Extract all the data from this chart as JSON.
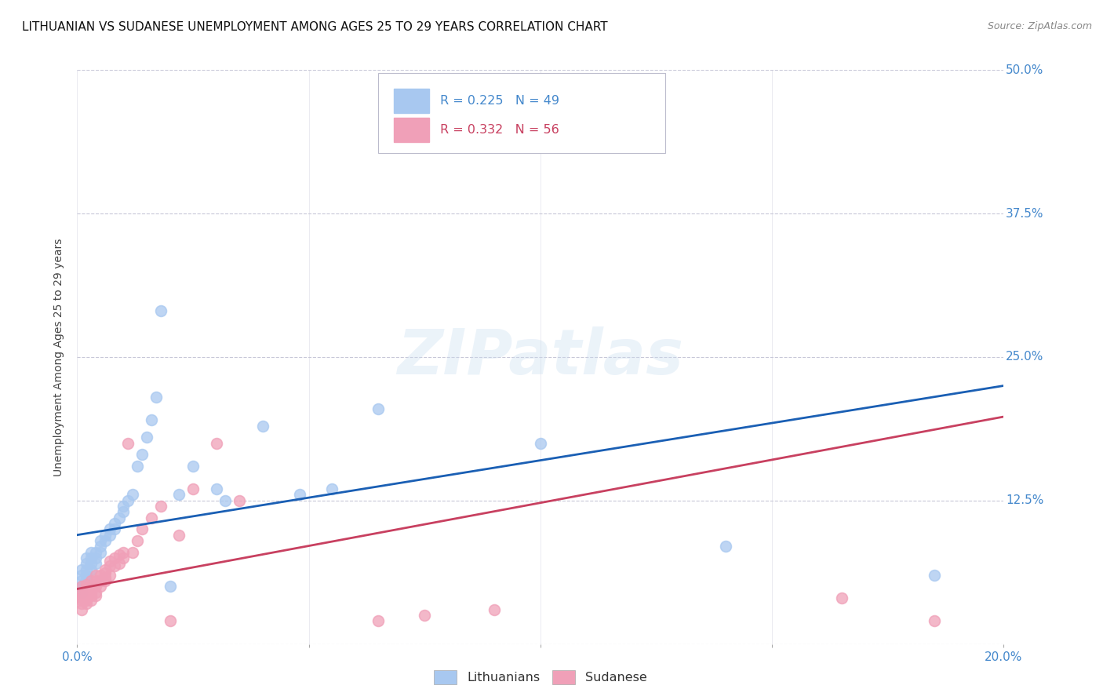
{
  "title": "LITHUANIAN VS SUDANESE UNEMPLOYMENT AMONG AGES 25 TO 29 YEARS CORRELATION CHART",
  "source": "Source: ZipAtlas.com",
  "ylabel": "Unemployment Among Ages 25 to 29 years",
  "xlim": [
    0.0,
    0.2
  ],
  "ylim": [
    0.0,
    0.5
  ],
  "xticks": [
    0.0,
    0.05,
    0.1,
    0.15,
    0.2
  ],
  "yticks": [
    0.0,
    0.125,
    0.25,
    0.375,
    0.5
  ],
  "blue_color": "#a8c8f0",
  "pink_color": "#f0a0b8",
  "blue_line_color": "#1a5fb4",
  "pink_line_color": "#c84060",
  "axis_color": "#4488cc",
  "grid_color": "#c8c8d8",
  "background_color": "#ffffff",
  "title_fontsize": 11,
  "axis_label_fontsize": 10,
  "tick_fontsize": 11,
  "watermark_text": "ZIPatlas",
  "blue_R": 0.225,
  "blue_N": 49,
  "pink_R": 0.332,
  "pink_N": 56,
  "blue_scatter_x": [
    0.001,
    0.001,
    0.001,
    0.001,
    0.001,
    0.002,
    0.002,
    0.002,
    0.002,
    0.002,
    0.003,
    0.003,
    0.003,
    0.003,
    0.004,
    0.004,
    0.004,
    0.005,
    0.005,
    0.005,
    0.006,
    0.006,
    0.007,
    0.007,
    0.008,
    0.008,
    0.009,
    0.01,
    0.01,
    0.011,
    0.012,
    0.013,
    0.014,
    0.015,
    0.016,
    0.017,
    0.018,
    0.02,
    0.022,
    0.025,
    0.03,
    0.032,
    0.04,
    0.048,
    0.055,
    0.065,
    0.1,
    0.14,
    0.185
  ],
  "blue_scatter_y": [
    0.05,
    0.045,
    0.055,
    0.06,
    0.065,
    0.055,
    0.06,
    0.065,
    0.07,
    0.075,
    0.065,
    0.07,
    0.075,
    0.08,
    0.07,
    0.075,
    0.08,
    0.08,
    0.085,
    0.09,
    0.09,
    0.095,
    0.095,
    0.1,
    0.1,
    0.105,
    0.11,
    0.115,
    0.12,
    0.125,
    0.13,
    0.155,
    0.165,
    0.18,
    0.195,
    0.215,
    0.29,
    0.05,
    0.13,
    0.155,
    0.135,
    0.125,
    0.19,
    0.13,
    0.135,
    0.205,
    0.175,
    0.085,
    0.06
  ],
  "pink_scatter_x": [
    0.001,
    0.001,
    0.001,
    0.001,
    0.001,
    0.001,
    0.001,
    0.002,
    0.002,
    0.002,
    0.002,
    0.002,
    0.002,
    0.002,
    0.003,
    0.003,
    0.003,
    0.003,
    0.003,
    0.004,
    0.004,
    0.004,
    0.004,
    0.004,
    0.005,
    0.005,
    0.005,
    0.006,
    0.006,
    0.006,
    0.006,
    0.007,
    0.007,
    0.007,
    0.008,
    0.008,
    0.009,
    0.009,
    0.01,
    0.01,
    0.011,
    0.012,
    0.013,
    0.014,
    0.016,
    0.018,
    0.02,
    0.022,
    0.025,
    0.03,
    0.035,
    0.065,
    0.075,
    0.09,
    0.165,
    0.185
  ],
  "pink_scatter_y": [
    0.035,
    0.04,
    0.045,
    0.038,
    0.042,
    0.05,
    0.03,
    0.04,
    0.038,
    0.042,
    0.045,
    0.035,
    0.048,
    0.052,
    0.042,
    0.045,
    0.05,
    0.038,
    0.055,
    0.045,
    0.05,
    0.055,
    0.042,
    0.06,
    0.05,
    0.055,
    0.06,
    0.058,
    0.062,
    0.055,
    0.065,
    0.06,
    0.068,
    0.072,
    0.068,
    0.075,
    0.07,
    0.078,
    0.075,
    0.08,
    0.175,
    0.08,
    0.09,
    0.1,
    0.11,
    0.12,
    0.02,
    0.095,
    0.135,
    0.175,
    0.125,
    0.02,
    0.025,
    0.03,
    0.04,
    0.02
  ]
}
